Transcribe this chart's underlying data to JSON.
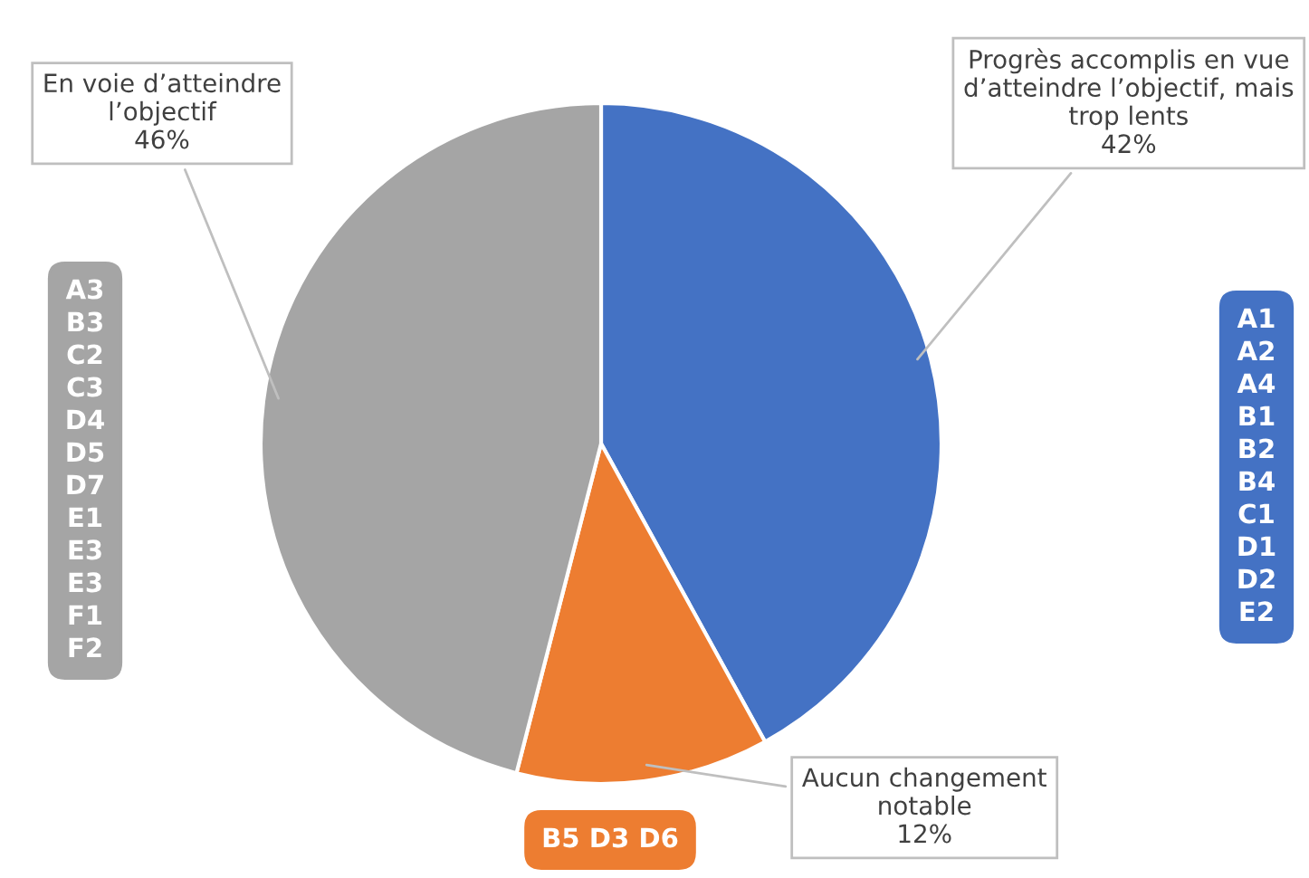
{
  "chart_data": {
    "type": "pie",
    "categories": [
      "Progrès accomplis en vue\nd’atteindre l’objectif, mais\ntrop lents",
      "Aucun changement\nnotable",
      "En voie d’atteindre\nl’objectif"
    ],
    "values": [
      42,
      12,
      46
    ],
    "colors": [
      "#4472c4",
      "#ed7d31",
      "#a5a5a5"
    ],
    "value_labels": [
      "42%",
      "12%",
      "46%"
    ],
    "annotations": [
      "A1\nA2\nA4\nB1\nB2\nB4\nC1\nD1\nD2\nE2",
      "B5 D3 D6",
      "A3\nB3\nC2\nC3\nD4\nD5\nD7\nE1\nE3\nE3\nF1\nF2"
    ],
    "legend": false
  }
}
